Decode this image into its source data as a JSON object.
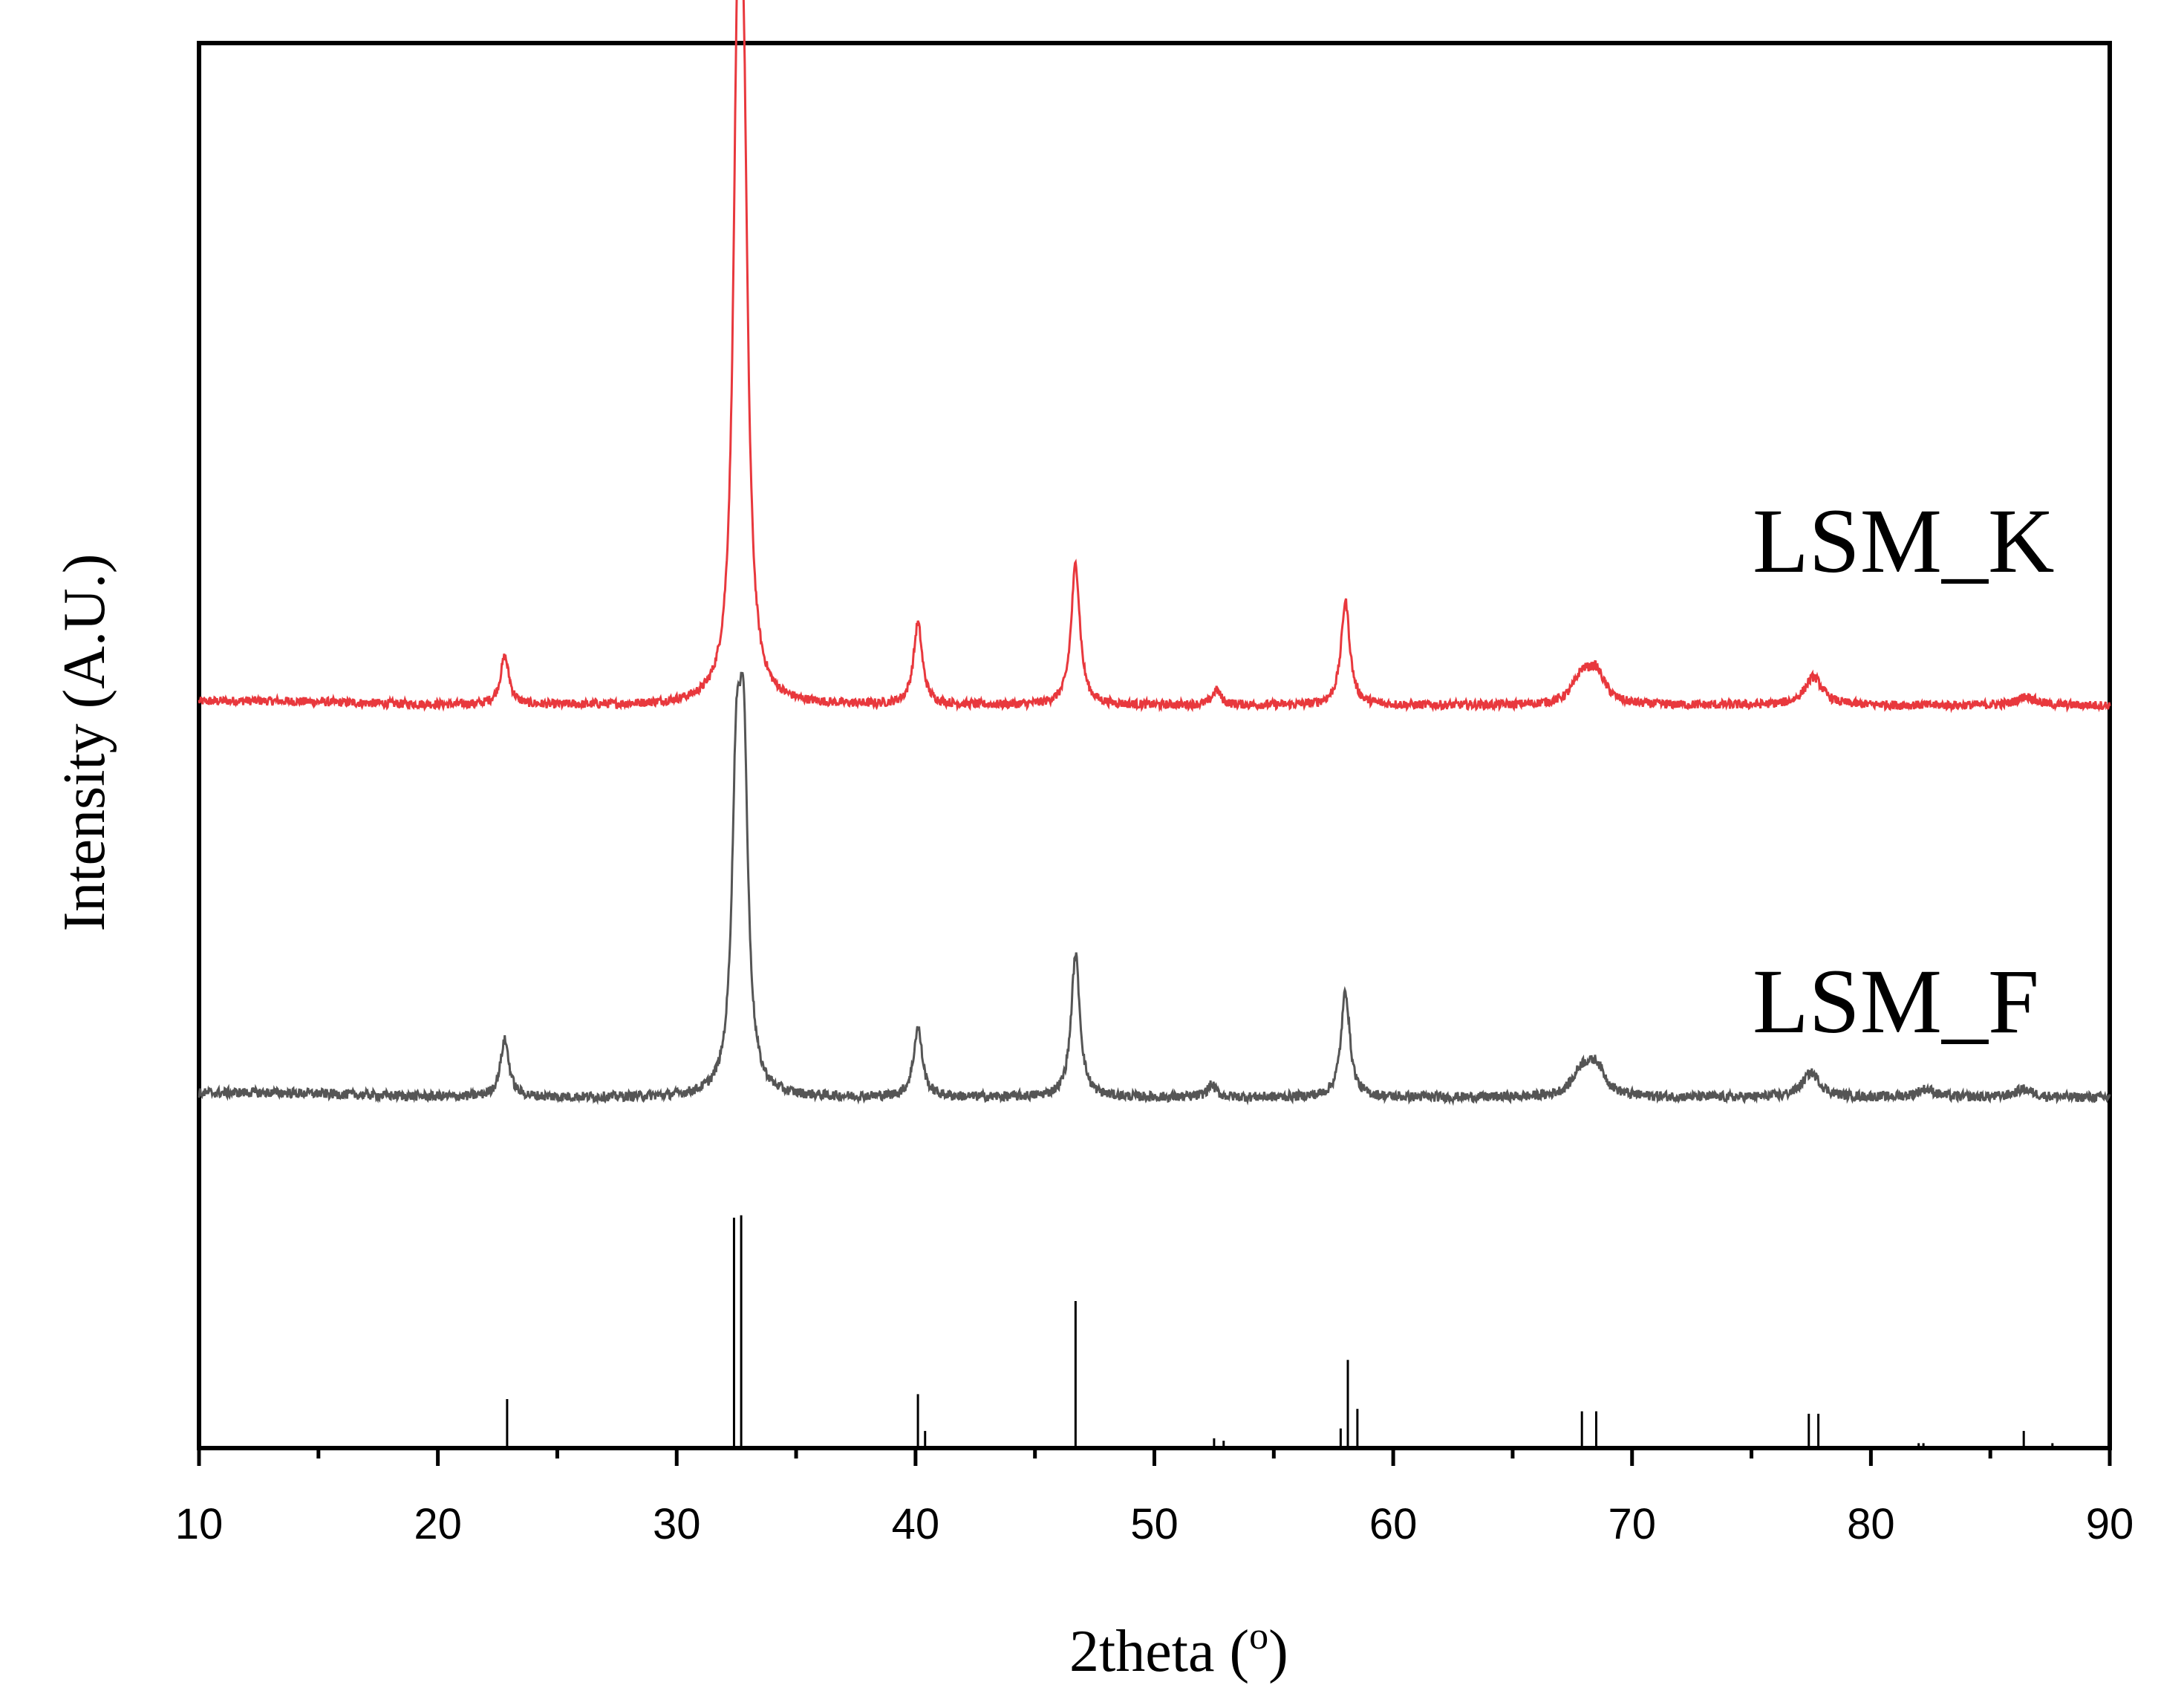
{
  "chart_data": {
    "type": "line",
    "xlabel": "2theta (",
    "xlabel_sup": "o",
    "xlabel_end": ")",
    "ylabel": "Intensity (A.U.)",
    "xlim": [
      10,
      90
    ],
    "x_ticks": [
      "10",
      "20",
      "30",
      "40",
      "50",
      "60",
      "70",
      "80",
      "90"
    ],
    "y_ticks_shown": false,
    "grid": false,
    "series": [
      {
        "name": "LSM_K",
        "color": "#e8383d",
        "peaks": [
          {
            "x": 22.8,
            "y": 0.65
          },
          {
            "x": 32.55,
            "y": 7.4
          },
          {
            "x": 32.8,
            "y": 6.3
          },
          {
            "x": 40.1,
            "y": 1.1
          },
          {
            "x": 46.7,
            "y": 1.9
          },
          {
            "x": 52.6,
            "y": 0.2
          },
          {
            "x": 58.0,
            "y": 1.4
          },
          {
            "x": 67.9,
            "y": 0.35
          },
          {
            "x": 68.5,
            "y": 0.4
          },
          {
            "x": 77.6,
            "y": 0.38
          },
          {
            "x": 86.5,
            "y": 0.12
          }
        ]
      },
      {
        "name": "LSM_F",
        "color": "#555555",
        "peaks": [
          {
            "x": 22.8,
            "y": 0.7
          },
          {
            "x": 32.5,
            "y": 3.5
          },
          {
            "x": 32.8,
            "y": 3.9
          },
          {
            "x": 40.1,
            "y": 0.85
          },
          {
            "x": 46.7,
            "y": 1.75
          },
          {
            "x": 52.4,
            "y": 0.15
          },
          {
            "x": 58.0,
            "y": 1.3
          },
          {
            "x": 67.9,
            "y": 0.3
          },
          {
            "x": 68.5,
            "y": 0.35
          },
          {
            "x": 77.5,
            "y": 0.3
          },
          {
            "x": 82.3,
            "y": 0.1
          },
          {
            "x": 86.4,
            "y": 0.1
          }
        ]
      },
      {
        "name": "",
        "type": "stick",
        "color": "#000000",
        "x": [
          22.9,
          32.4,
          32.7,
          40.1,
          40.4,
          46.7,
          52.5,
          52.9,
          57.8,
          58.1,
          58.5,
          67.9,
          68.5,
          77.4,
          77.8,
          82.0,
          82.2,
          86.4,
          87.6
        ],
        "values": [
          20,
          94,
          95,
          22,
          7,
          60,
          4,
          3,
          8,
          36,
          16,
          15,
          15,
          14,
          14,
          2,
          2,
          7,
          2
        ]
      }
    ]
  }
}
